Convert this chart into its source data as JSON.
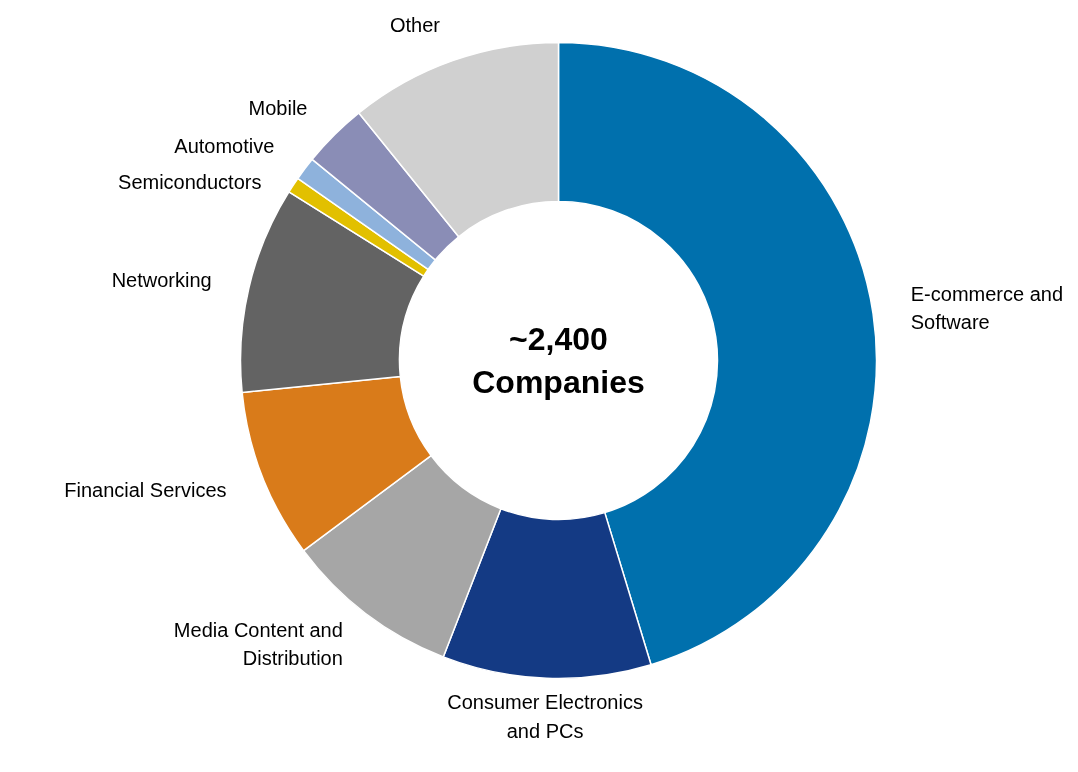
{
  "chart_data": {
    "type": "donut",
    "categories": [
      "E-commerce and Software",
      "Consumer Electronics and PCs",
      "Media Content and Distribution",
      "Financial Services",
      "Networking",
      "Semiconductors",
      "Automotive",
      "Mobile",
      "Other"
    ],
    "values": [
      45.3,
      10.6,
      8.9,
      8.6,
      10.5,
      0.8,
      1.2,
      3.3,
      10.8
    ],
    "colors": [
      "#0070ad",
      "#143a84",
      "#a6a6a6",
      "#d97b1a",
      "#636363",
      "#e2c000",
      "#8eb2dc",
      "#8a8db6",
      "#d0d0d0"
    ],
    "annotations": [
      "~2,400 Companies"
    ],
    "legend": false
  }
}
